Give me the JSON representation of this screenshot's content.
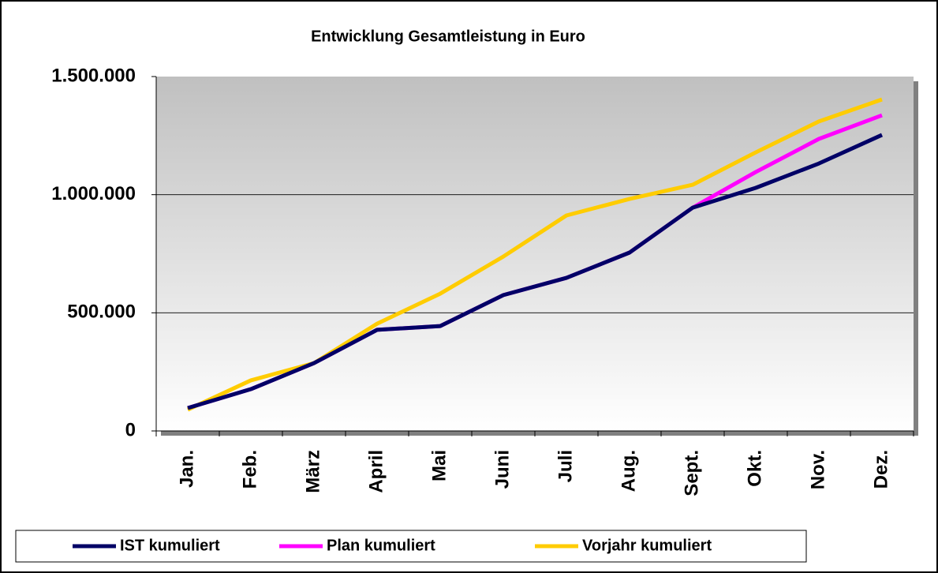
{
  "chart_data": {
    "type": "line",
    "title": "Entwicklung Gesamtleistung in Euro",
    "categories": [
      "Jan.",
      "Feb.",
      "März",
      "April",
      "Mai",
      "Juni",
      "Juli",
      "Aug.",
      "Sept.",
      "Okt.",
      "Nov.",
      "Dez."
    ],
    "series": [
      {
        "name": "IST kumuliert",
        "color": "#000066",
        "values": [
          97000,
          177000,
          287000,
          428000,
          444000,
          575000,
          648000,
          755000,
          945000,
          1029000,
          1132000,
          1253000
        ]
      },
      {
        "name": "Plan kumuliert",
        "color": "#ff00ff",
        "values": [
          97000,
          177000,
          287000,
          428000,
          444000,
          575000,
          648000,
          755000,
          945000,
          1096000,
          1236000,
          1336000
        ]
      },
      {
        "name": "Vorjahr kumuliert",
        "color": "#ffcc00",
        "values": [
          90000,
          214000,
          287000,
          454000,
          581000,
          738000,
          912000,
          982000,
          1042000,
          1179000,
          1310000,
          1403000
        ]
      }
    ],
    "ylim": [
      0,
      1500000
    ],
    "yticks": [
      0,
      {
        "value": 500000,
        "label": "500.000"
      },
      {
        "value": 1000000,
        "label": "1.000.000"
      },
      {
        "value": 1500000,
        "label": "1.500.000"
      }
    ],
    "grid": true,
    "legend": "bottom"
  }
}
